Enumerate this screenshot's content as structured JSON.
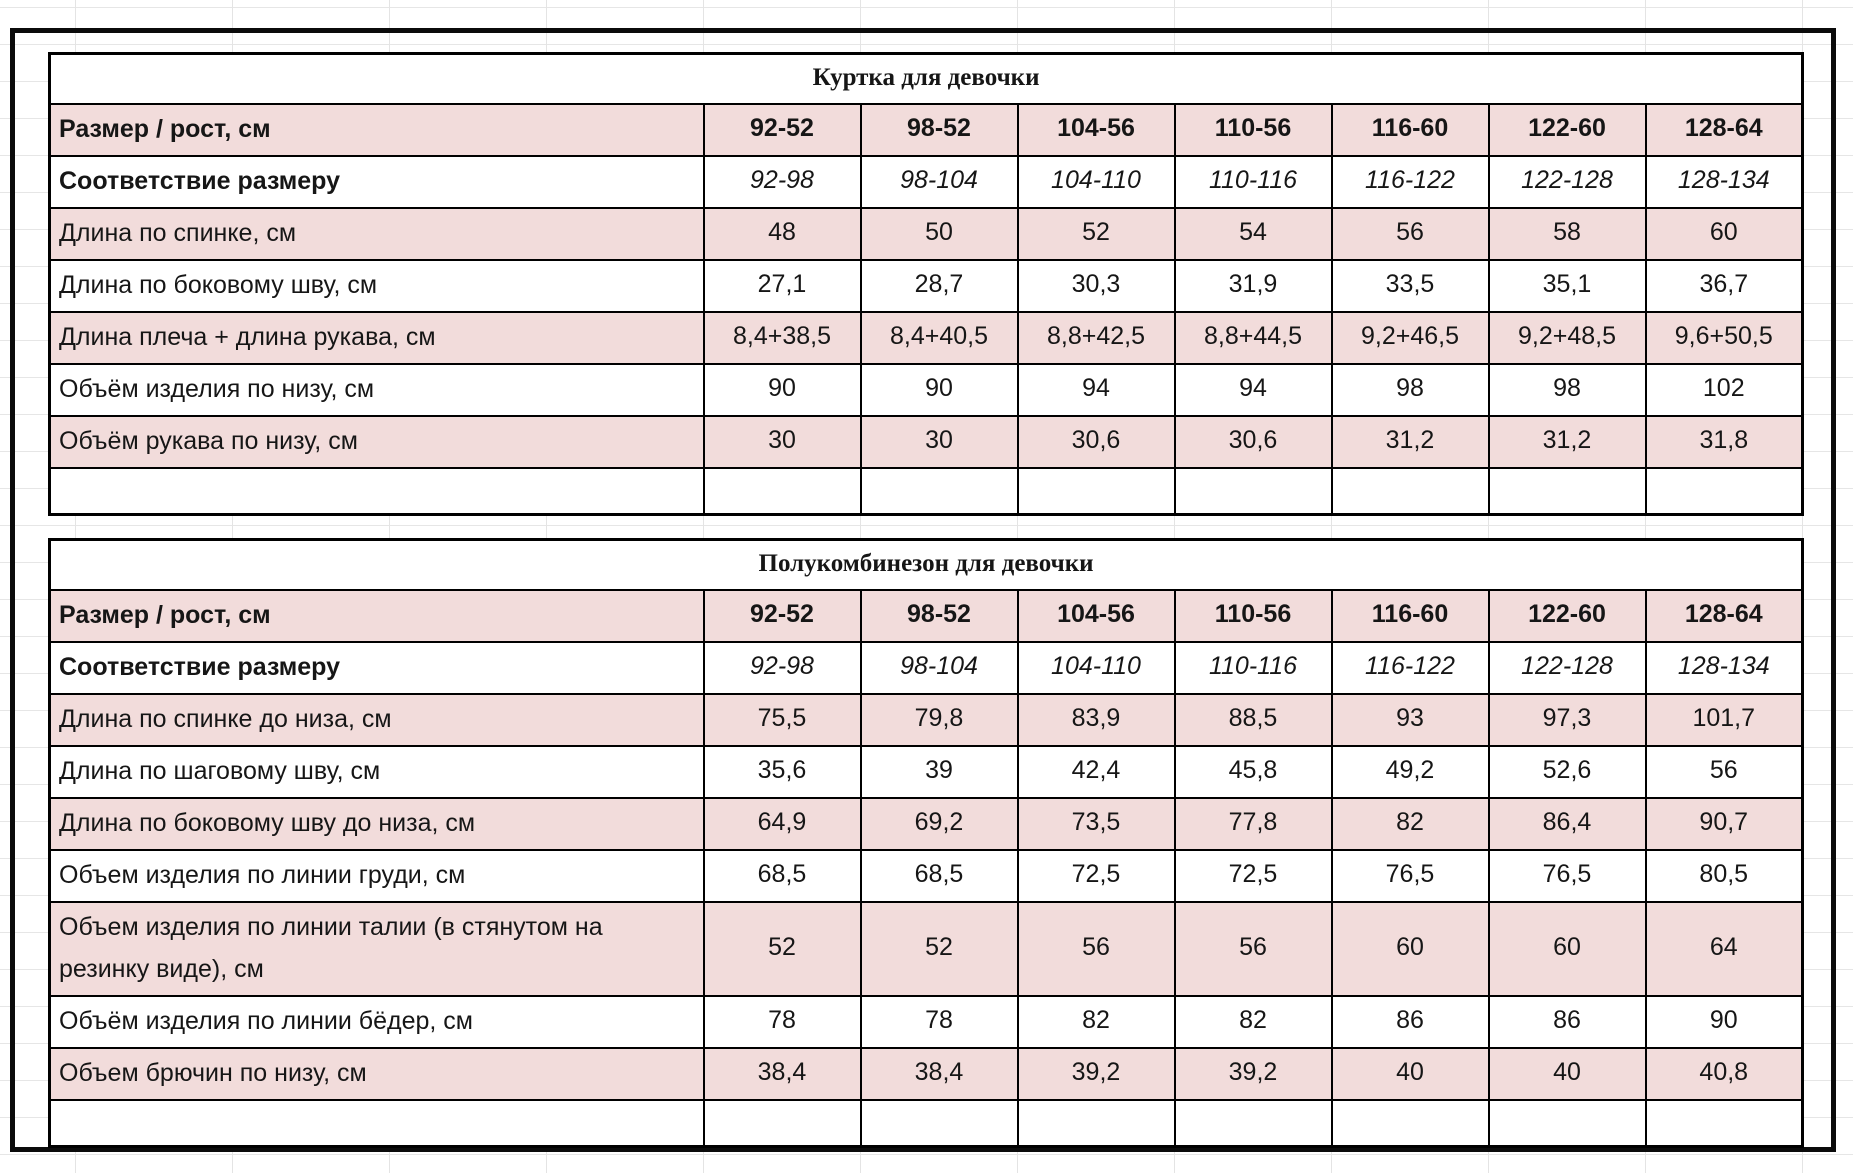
{
  "colors": {
    "row_pink": "#f2dcdb",
    "row_white": "#ffffff",
    "table_border": "#000000",
    "outer_frame": "#0b0b0b",
    "text": "#161616",
    "gridline": "#e4e4e4"
  },
  "tables": [
    {
      "name": "jacket",
      "title": "Куртка для девочки",
      "size_row_label": "Размер / рост, см",
      "sizes": [
        "92-52",
        "98-52",
        "104-56",
        "110-56",
        "116-60",
        "122-60",
        "128-64"
      ],
      "conformity_row_label": "Соответствие размеру",
      "conformity": [
        "92-98",
        "98-104",
        "104-110",
        "110-116",
        "116-122",
        "122-128",
        "128-134"
      ],
      "rows": [
        {
          "label": "Длина по спинке, см",
          "values": [
            "48",
            "50",
            "52",
            "54",
            "56",
            "58",
            "60"
          ]
        },
        {
          "label": "Длина по боковому шву, см",
          "values": [
            "27,1",
            "28,7",
            "30,3",
            "31,9",
            "33,5",
            "35,1",
            "36,7"
          ]
        },
        {
          "label": "Длина плеча + длина рукава, см",
          "values": [
            "8,4+38,5",
            "8,4+40,5",
            "8,8+42,5",
            "8,8+44,5",
            "9,2+46,5",
            "9,2+48,5",
            "9,6+50,5"
          ]
        },
        {
          "label": "Объём изделия по низу, см",
          "values": [
            "90",
            "90",
            "94",
            "94",
            "98",
            "98",
            "102"
          ]
        },
        {
          "label": "Объём рукава по низу, см",
          "values": [
            "30",
            "30",
            "30,6",
            "30,6",
            "31,2",
            "31,2",
            "31,8"
          ]
        }
      ],
      "trailing_empty_row": true
    },
    {
      "name": "overalls",
      "title": "Полукомбинезон для девочки",
      "size_row_label": "Размер / рост, см",
      "sizes": [
        "92-52",
        "98-52",
        "104-56",
        "110-56",
        "116-60",
        "122-60",
        "128-64"
      ],
      "conformity_row_label": "Соответствие размеру",
      "conformity": [
        "92-98",
        "98-104",
        "104-110",
        "110-116",
        "116-122",
        "122-128",
        "128-134"
      ],
      "rows": [
        {
          "label": "Длина по спинке до низа, см",
          "values": [
            "75,5",
            "79,8",
            "83,9",
            "88,5",
            "93",
            "97,3",
            "101,7"
          ]
        },
        {
          "label": "Длина по шаговому шву, см",
          "values": [
            "35,6",
            "39",
            "42,4",
            "45,8",
            "49,2",
            "52,6",
            "56"
          ]
        },
        {
          "label": "Длина по боковому шву до низа, см",
          "values": [
            "64,9",
            "69,2",
            "73,5",
            "77,8",
            "82",
            "86,4",
            "90,7"
          ]
        },
        {
          "label": "Объем изделия по линии груди, см",
          "values": [
            "68,5",
            "68,5",
            "72,5",
            "72,5",
            "76,5",
            "76,5",
            "80,5"
          ]
        },
        {
          "label": "Объем изделия по линии талии (в стянутом на резинку виде), см",
          "values": [
            "52",
            "52",
            "56",
            "56",
            "60",
            "60",
            "64"
          ]
        },
        {
          "label": "Объём изделия по линии бёдер, см",
          "values": [
            "78",
            "78",
            "82",
            "82",
            "86",
            "86",
            "90"
          ]
        },
        {
          "label": "Объем брючин по низу, см",
          "values": [
            "38,4",
            "38,4",
            "39,2",
            "39,2",
            "40",
            "40",
            "40,8"
          ]
        }
      ],
      "trailing_empty_row": true
    }
  ]
}
